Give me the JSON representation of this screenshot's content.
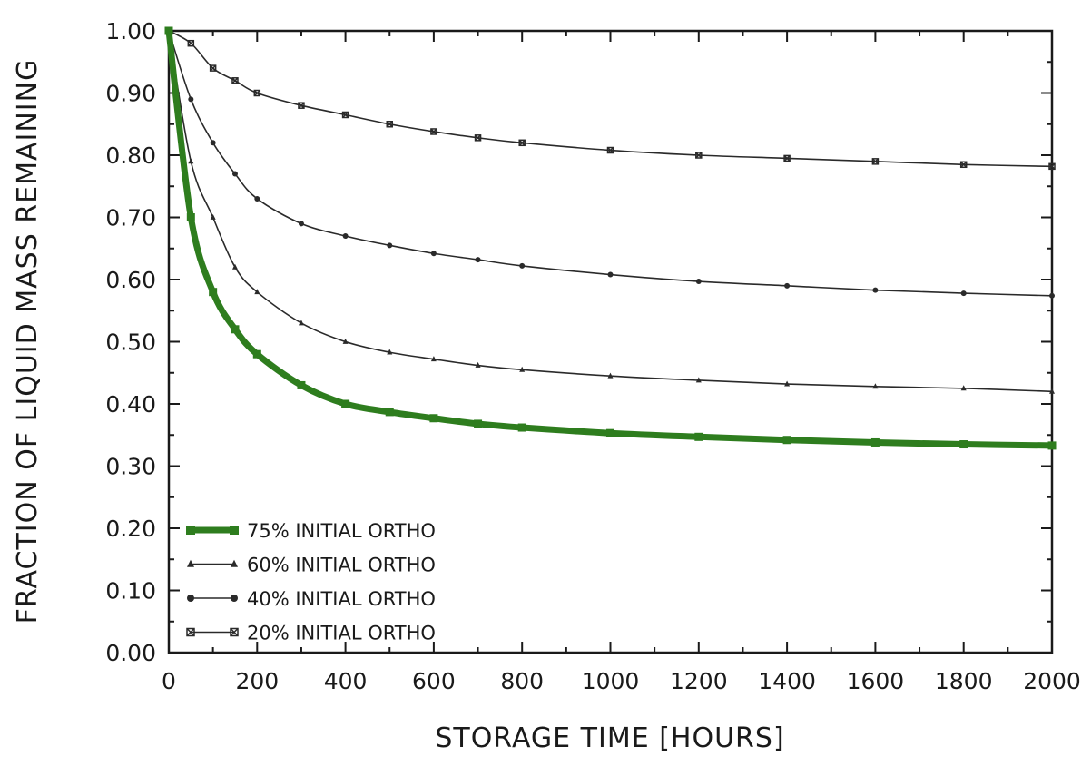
{
  "chart_data": {
    "type": "line",
    "title": "",
    "xlabel": "STORAGE TIME [HOURS]",
    "ylabel": "FRACTION OF LIQUID MASS REMAINING",
    "xlim": [
      0,
      2000
    ],
    "ylim": [
      0,
      1
    ],
    "x_ticks": [
      "0",
      "200",
      "400",
      "600",
      "800",
      "1000",
      "1200",
      "1400",
      "1600",
      "1800",
      "2000"
    ],
    "y_ticks": [
      "0.00",
      "0.10",
      "0.20",
      "0.30",
      "0.40",
      "0.50",
      "0.60",
      "0.70",
      "0.80",
      "0.90",
      "1.00"
    ],
    "grid": false,
    "legend_position": "bottom-left",
    "x": [
      0,
      50,
      100,
      150,
      200,
      300,
      400,
      500,
      600,
      700,
      800,
      1000,
      1200,
      1400,
      1600,
      1800,
      2000
    ],
    "series": [
      {
        "name": "75% INITIAL ORTHO",
        "marker": "square",
        "color": "#2e7d1e",
        "values": [
          1.0,
          0.7,
          0.58,
          0.52,
          0.48,
          0.43,
          0.4,
          0.387,
          0.377,
          0.368,
          0.362,
          0.353,
          0.347,
          0.342,
          0.338,
          0.335,
          0.333
        ]
      },
      {
        "name": "60% INITIAL ORTHO",
        "marker": "triangle",
        "color": "#2a2a2a",
        "values": [
          1.0,
          0.79,
          0.7,
          0.62,
          0.58,
          0.53,
          0.5,
          0.483,
          0.472,
          0.462,
          0.455,
          0.445,
          0.438,
          0.432,
          0.428,
          0.425,
          0.42
        ]
      },
      {
        "name": "40% INITIAL ORTHO",
        "marker": "circle",
        "color": "#2a2a2a",
        "values": [
          1.0,
          0.89,
          0.82,
          0.77,
          0.73,
          0.69,
          0.67,
          0.655,
          0.642,
          0.632,
          0.622,
          0.608,
          0.597,
          0.59,
          0.583,
          0.578,
          0.574
        ]
      },
      {
        "name": "20% INITIAL ORTHO",
        "marker": "x-square",
        "color": "#2a2a2a",
        "values": [
          1.0,
          0.98,
          0.94,
          0.92,
          0.9,
          0.88,
          0.865,
          0.85,
          0.838,
          0.828,
          0.82,
          0.808,
          0.8,
          0.795,
          0.79,
          0.785,
          0.782
        ]
      }
    ]
  }
}
